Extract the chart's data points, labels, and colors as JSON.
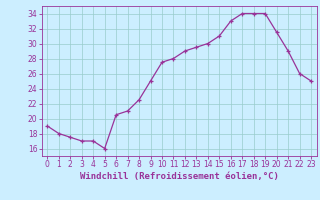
{
  "x": [
    0,
    1,
    2,
    3,
    4,
    5,
    6,
    7,
    8,
    9,
    10,
    11,
    12,
    13,
    14,
    15,
    16,
    17,
    18,
    19,
    20,
    21,
    22,
    23
  ],
  "y": [
    19,
    18,
    17.5,
    17,
    17,
    16,
    20.5,
    21,
    22.5,
    25,
    27.5,
    28,
    29,
    29.5,
    30,
    31,
    33,
    34,
    34,
    34,
    31.5,
    29,
    26,
    25
  ],
  "line_color": "#993399",
  "marker": "+",
  "marker_size": 3.5,
  "linewidth": 0.9,
  "bg_color": "#cceeff",
  "grid_color": "#99cccc",
  "xlabel": "Windchill (Refroidissement éolien,°C)",
  "ylabel": "",
  "xlim": [
    -0.5,
    23.5
  ],
  "ylim": [
    15,
    35
  ],
  "yticks": [
    16,
    18,
    20,
    22,
    24,
    26,
    28,
    30,
    32,
    34
  ],
  "xtick_labels": [
    "0",
    "1",
    "2",
    "3",
    "4",
    "5",
    "6",
    "7",
    "8",
    "9",
    "10",
    "11",
    "12",
    "13",
    "14",
    "15",
    "16",
    "17",
    "18",
    "19",
    "20",
    "21",
    "22",
    "23"
  ],
  "tick_color": "#993399",
  "tick_fontsize": 5.5,
  "xlabel_fontsize": 6.5,
  "axis_color": "#993399"
}
